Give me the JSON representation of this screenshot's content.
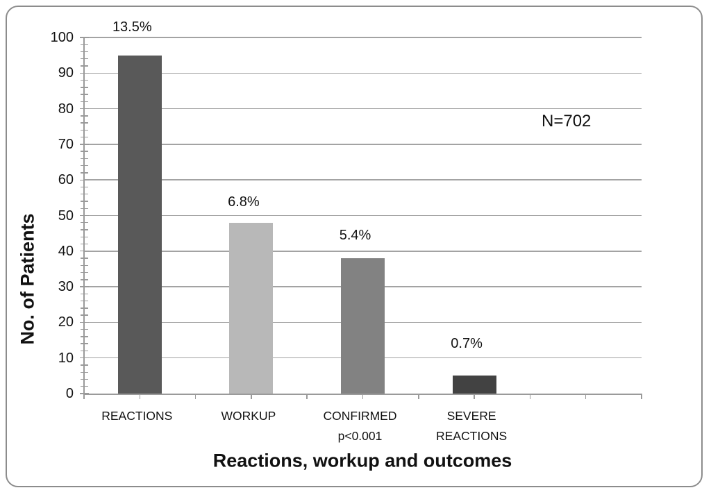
{
  "chart_data": {
    "type": "bar",
    "title": "",
    "ylabel": "No. of Patients",
    "xlabel": "Reactions, workup and outcomes",
    "categories": [
      "REACTIONS",
      "WORKUP",
      "CONFIRMED p<0.001",
      "SEVERE REACTIONS"
    ],
    "category_lines": [
      [
        "REACTIONS"
      ],
      [
        "WORKUP"
      ],
      [
        "CONFIRMED",
        "p<0.001"
      ],
      [
        "SEVERE",
        "REACTIONS"
      ]
    ],
    "values": [
      95,
      48,
      38,
      5
    ],
    "bar_labels": [
      "13.5%",
      "6.8%",
      "5.4%",
      "0.7%"
    ],
    "bar_colors": [
      "#595959",
      "#b8b8b8",
      "#828282",
      "#424242"
    ],
    "annotation": "N=702",
    "ylim": [
      0,
      100
    ],
    "yticks": [
      0,
      10,
      20,
      30,
      40,
      50,
      60,
      70,
      80,
      90,
      100
    ],
    "minor_tick_step": 2,
    "x_axis_slots": 5,
    "x_ticks_count": 11,
    "grid": true,
    "legend": "none"
  },
  "colors": {
    "gridline": "#a3a3a3",
    "axis": "#9a9a9a",
    "frame_border": "#8c8c8c",
    "text": "#111111"
  }
}
